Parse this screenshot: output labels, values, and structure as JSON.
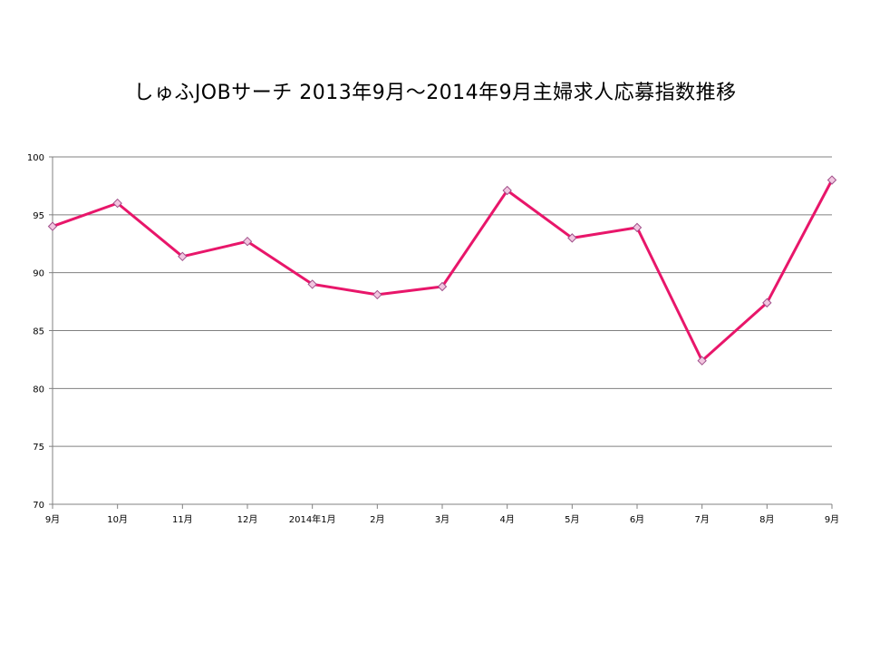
{
  "title": "しゅふJOBサーチ  2013年9月～2014年9月主婦求人応募指数推移",
  "colors": {
    "line": "#E8166A",
    "marker_fill": "#F2C6E0",
    "marker_stroke": "#A0508A",
    "grid": "#808080",
    "axis": "#808080"
  },
  "chart_data": {
    "type": "line",
    "title": "しゅふJOBサーチ  2013年9月～2014年9月主婦求人応募指数推移",
    "xlabel": "",
    "ylabel": "",
    "categories": [
      "9月",
      "10月",
      "11月",
      "12月",
      "2014年1月",
      "2月",
      "3月",
      "4月",
      "5月",
      "6月",
      "7月",
      "8月",
      "9月"
    ],
    "series": [
      {
        "values": [
          94.0,
          96.0,
          91.4,
          92.7,
          89.0,
          88.1,
          88.8,
          97.1,
          93.0,
          93.9,
          82.4,
          87.4,
          98.0
        ]
      }
    ],
    "ylim": [
      70,
      100
    ],
    "yticks": [
      70,
      75,
      80,
      85,
      90,
      95,
      100
    ],
    "grid": true,
    "legend": "none",
    "marker": "diamond"
  }
}
